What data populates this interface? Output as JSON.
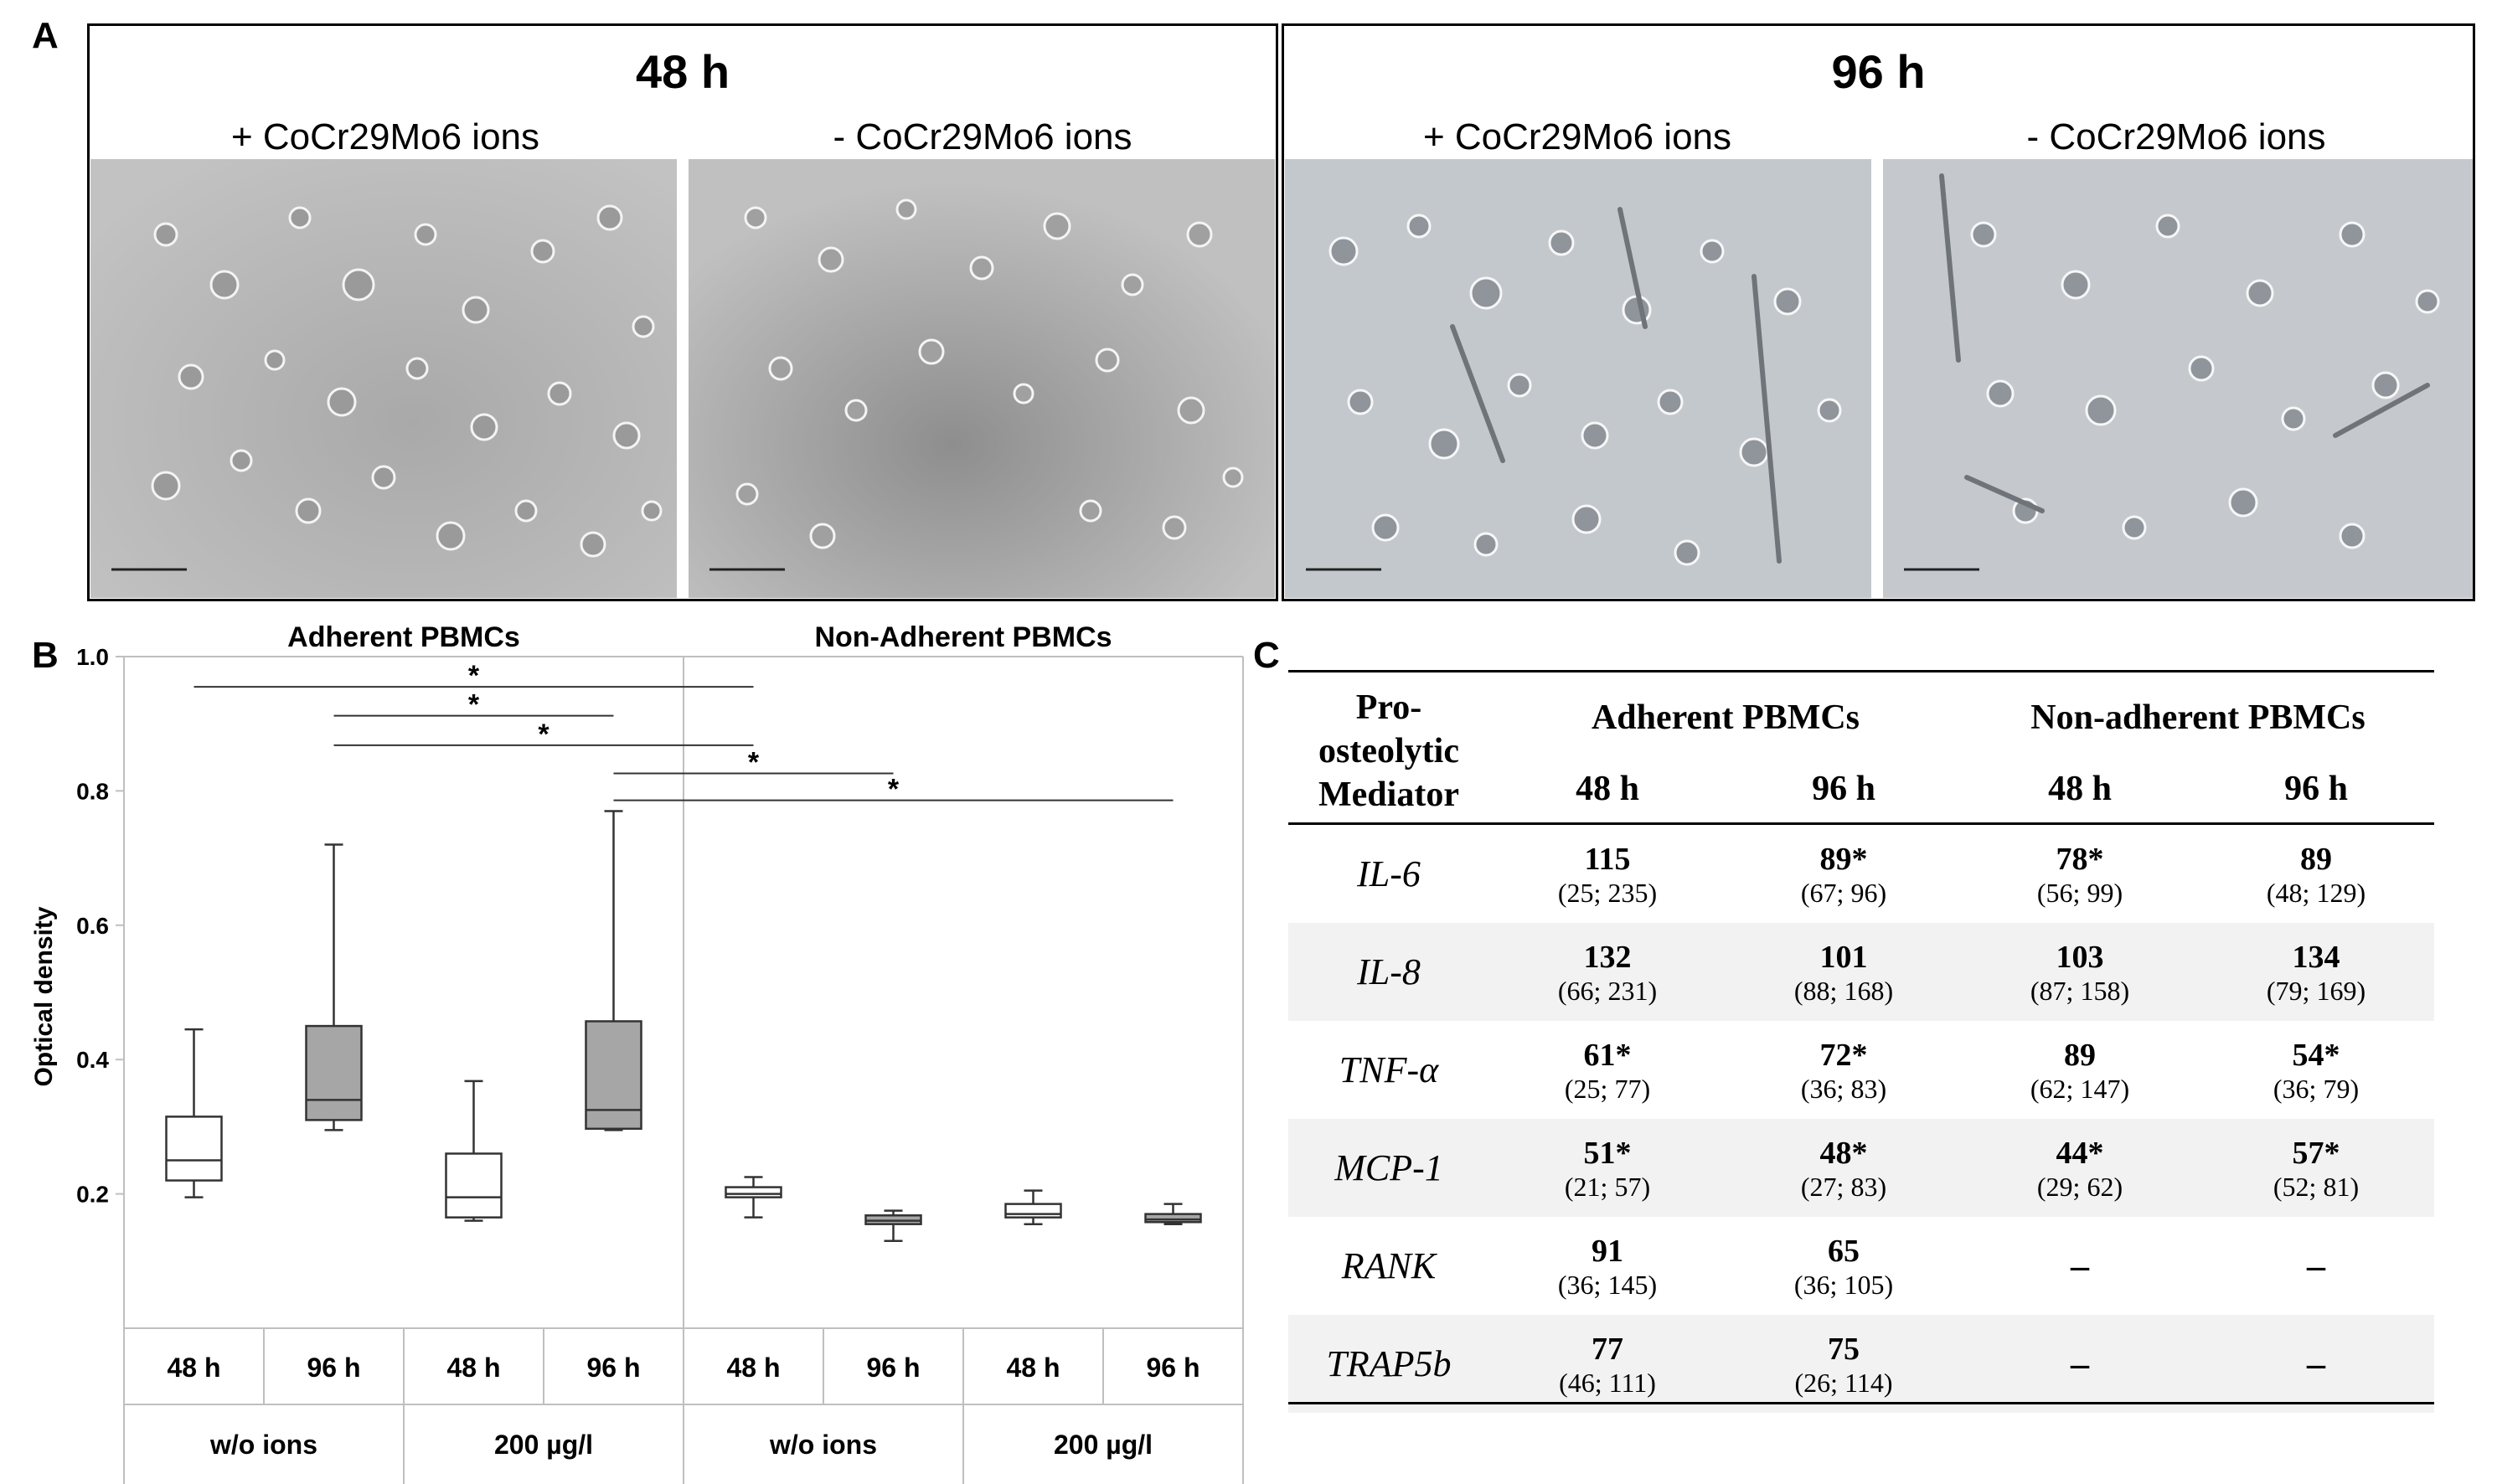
{
  "panel_labels": {
    "a": "A",
    "b": "B",
    "c": "C"
  },
  "panel_a": {
    "groups": [
      {
        "title": "48 h",
        "plus_label": "+ CoCr29Mo6 ions",
        "minus_label": "- CoCr29Mo6 ions"
      },
      {
        "title": "96 h",
        "plus_label": "+ CoCr29Mo6 ions",
        "minus_label": "- CoCr29Mo6 ions"
      }
    ]
  },
  "chart_data": {
    "type": "box",
    "section_titles": [
      "Adherent PBMCs",
      "Non-Adherent PBMCs"
    ],
    "ylabel": "Optical density",
    "ylim": [
      0,
      1.0
    ],
    "yticks": [
      0.2,
      0.4,
      0.6,
      0.8,
      1.0
    ],
    "ytick_labels": [
      "0.2",
      "0.4",
      "0.6",
      "0.8",
      "1.0"
    ],
    "time_labels": [
      "48 h",
      "96 h",
      "48 h",
      "96 h",
      "48 h",
      "96 h",
      "48 h",
      "96 h"
    ],
    "condition_labels": [
      "w/o ions",
      "200 µg/l",
      "w/o ions",
      "200 µg/l"
    ],
    "boxes": [
      {
        "min": 0.195,
        "q1": 0.22,
        "median": 0.25,
        "q3": 0.315,
        "max": 0.445,
        "fill": "#ffffff"
      },
      {
        "min": 0.295,
        "q1": 0.31,
        "median": 0.34,
        "q3": 0.45,
        "max": 0.72,
        "fill": "#a6a6a6"
      },
      {
        "min": 0.16,
        "q1": 0.165,
        "median": 0.195,
        "q3": 0.26,
        "max": 0.368,
        "fill": "#ffffff"
      },
      {
        "min": 0.295,
        "q1": 0.297,
        "median": 0.325,
        "q3": 0.457,
        "max": 0.77,
        "fill": "#a6a6a6"
      },
      {
        "min": 0.165,
        "q1": 0.195,
        "median": 0.2,
        "q3": 0.21,
        "max": 0.225,
        "fill": "#ffffff"
      },
      {
        "min": 0.13,
        "q1": 0.155,
        "median": 0.16,
        "q3": 0.168,
        "max": 0.175,
        "fill": "#a6a6a6"
      },
      {
        "min": 0.155,
        "q1": 0.165,
        "median": 0.17,
        "q3": 0.185,
        "max": 0.205,
        "fill": "#ffffff"
      },
      {
        "min": 0.155,
        "q1": 0.158,
        "median": 0.162,
        "q3": 0.17,
        "max": 0.185,
        "fill": "#a6a6a6"
      }
    ],
    "significance": [
      {
        "from": 1,
        "to": 5,
        "y": 0.955,
        "label": "*"
      },
      {
        "from": 2,
        "to": 4,
        "y": 0.912,
        "label": "*"
      },
      {
        "from": 2,
        "to": 5,
        "y": 0.868,
        "label": "*"
      },
      {
        "from": 4,
        "to": 6,
        "y": 0.826,
        "label": "*"
      },
      {
        "from": 4,
        "to": 8,
        "y": 0.786,
        "label": "*"
      }
    ]
  },
  "panel_c": {
    "header_mediator": [
      "Pro-",
      "osteolytic",
      "Mediator"
    ],
    "group_adherent": "Adherent PBMCs",
    "group_nonadherent": "Non-adherent PBMCs",
    "times": [
      "48 h",
      "96 h",
      "48 h",
      "96 h"
    ],
    "rows": [
      {
        "mediator": "IL-6",
        "cells": [
          {
            "v": "115",
            "ci": "(25; 235)"
          },
          {
            "v": "89*",
            "ci": "(67; 96)"
          },
          {
            "v": "78*",
            "ci": "(56; 99)"
          },
          {
            "v": "89",
            "ci": "(48; 129)"
          }
        ]
      },
      {
        "mediator": "IL-8",
        "cells": [
          {
            "v": "132",
            "ci": "(66; 231)"
          },
          {
            "v": "101",
            "ci": "(88; 168)"
          },
          {
            "v": "103",
            "ci": "(87; 158)"
          },
          {
            "v": "134",
            "ci": "(79; 169)"
          }
        ]
      },
      {
        "mediator": "TNF-α",
        "cells": [
          {
            "v": "61*",
            "ci": "(25; 77)"
          },
          {
            "v": "72*",
            "ci": "(36; 83)"
          },
          {
            "v": "89",
            "ci": "(62; 147)"
          },
          {
            "v": "54*",
            "ci": "(36; 79)"
          }
        ]
      },
      {
        "mediator": "MCP-1",
        "cells": [
          {
            "v": "51*",
            "ci": "(21; 57)"
          },
          {
            "v": "48*",
            "ci": "(27; 83)"
          },
          {
            "v": "44*",
            "ci": "(29; 62)"
          },
          {
            "v": "57*",
            "ci": "(52; 81)"
          }
        ]
      },
      {
        "mediator": "RANK",
        "cells": [
          {
            "v": "91",
            "ci": "(36; 145)"
          },
          {
            "v": "65",
            "ci": "(36; 105)"
          },
          {
            "v": "–",
            "ci": ""
          },
          {
            "v": "–",
            "ci": ""
          }
        ]
      },
      {
        "mediator": "TRAP5b",
        "cells": [
          {
            "v": "77",
            "ci": "(46; 111)"
          },
          {
            "v": "75",
            "ci": "(26; 114)"
          },
          {
            "v": "–",
            "ci": ""
          },
          {
            "v": "–",
            "ci": ""
          }
        ]
      }
    ]
  }
}
